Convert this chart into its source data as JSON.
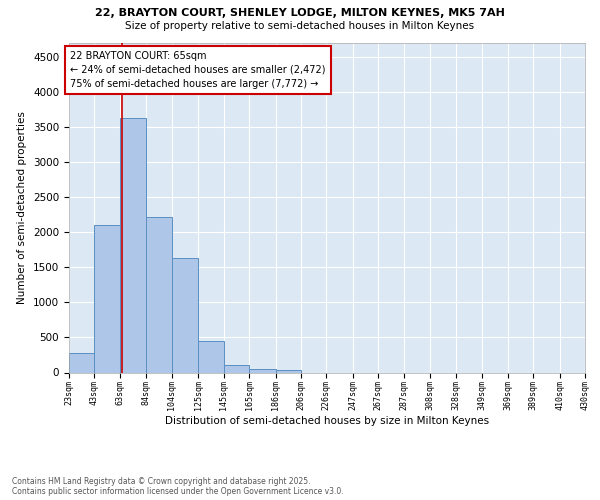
{
  "title1": "22, BRAYTON COURT, SHENLEY LODGE, MILTON KEYNES, MK5 7AH",
  "title2": "Size of property relative to semi-detached houses in Milton Keynes",
  "xlabel": "Distribution of semi-detached houses by size in Milton Keynes",
  "ylabel": "Number of semi-detached properties",
  "footnote1": "Contains HM Land Registry data © Crown copyright and database right 2025.",
  "footnote2": "Contains public sector information licensed under the Open Government Licence v3.0.",
  "annotation_title": "22 BRAYTON COURT: 65sqm",
  "annotation_line2": "← 24% of semi-detached houses are smaller (2,472)",
  "annotation_line3": "75% of semi-detached houses are larger (7,772) →",
  "property_size": 65,
  "bar_edges": [
    23,
    43,
    63,
    84,
    104,
    125,
    145,
    165,
    186,
    206,
    226,
    247,
    267,
    287,
    308,
    328,
    349,
    369,
    389,
    410,
    430
  ],
  "bar_heights": [
    280,
    2100,
    3620,
    2220,
    1630,
    450,
    100,
    55,
    30,
    0,
    0,
    0,
    0,
    0,
    0,
    0,
    0,
    0,
    0,
    0
  ],
  "bar_color": "#aec6e8",
  "bar_edge_color": "#5a8fc2",
  "highlight_line_color": "#cc0000",
  "annotation_box_color": "#cc0000",
  "background_color": "#dce9f5",
  "ylim": [
    0,
    4700
  ],
  "yticks": [
    0,
    500,
    1000,
    1500,
    2000,
    2500,
    3000,
    3500,
    4000,
    4500
  ],
  "tick_labels": [
    "23sqm",
    "43sqm",
    "63sqm",
    "84sqm",
    "104sqm",
    "125sqm",
    "145sqm",
    "165sqm",
    "186sqm",
    "206sqm",
    "226sqm",
    "247sqm",
    "267sqm",
    "287sqm",
    "308sqm",
    "328sqm",
    "349sqm",
    "369sqm",
    "389sqm",
    "410sqm",
    "430sqm"
  ]
}
